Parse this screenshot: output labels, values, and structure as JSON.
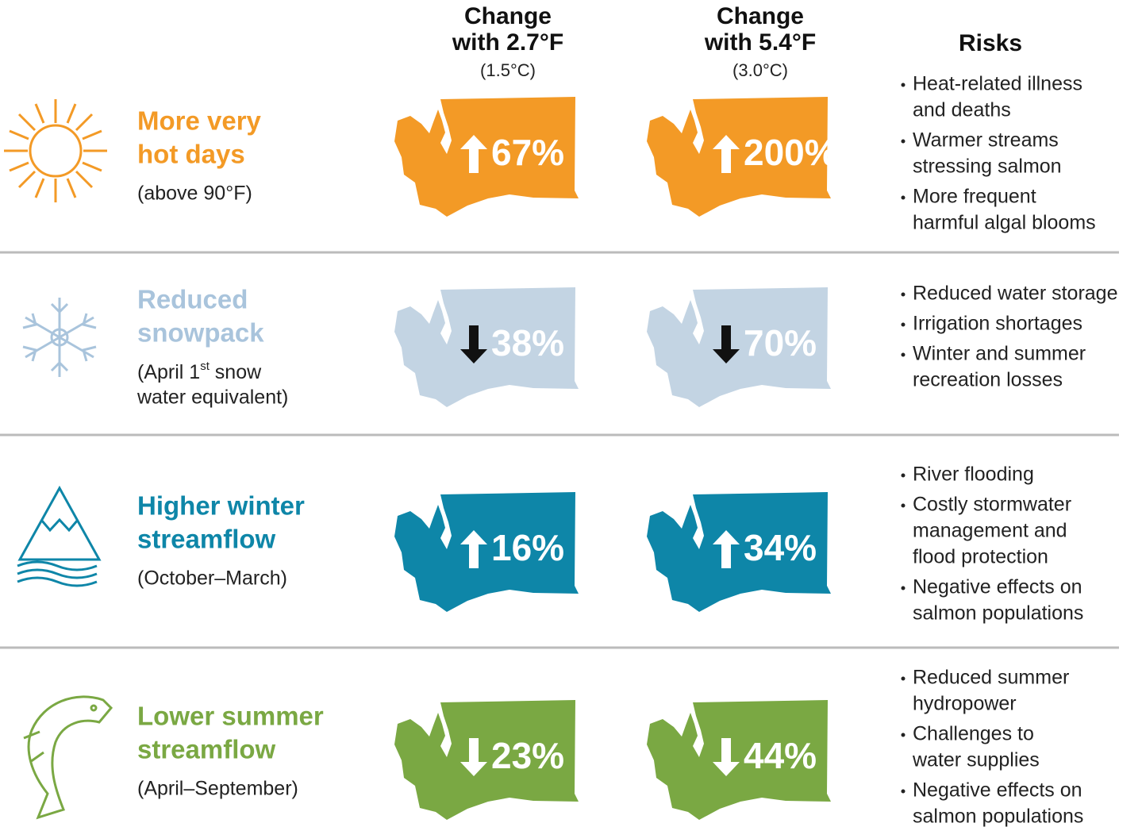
{
  "header": {
    "columns": [
      {
        "title": [
          "Change",
          "with 2.7°F"
        ],
        "subtitle": "(1.5°C)"
      },
      {
        "title": [
          "Change",
          "with 5.4°F"
        ],
        "subtitle": "(3.0°C)"
      }
    ],
    "risks_title": "Risks"
  },
  "rows": [
    {
      "title": [
        "More very",
        "hot days"
      ],
      "subtitle": [
        "(above 90°F)"
      ],
      "changes": [
        "67%",
        "200%"
      ],
      "risks": [
        [
          "Heat-related illness",
          "and deaths"
        ],
        [
          "Warmer streams",
          "stressing salmon"
        ],
        [
          "More frequent",
          "harmful algal blooms"
        ]
      ]
    },
    {
      "title": [
        "Reduced",
        "snowpack"
      ],
      "subtitle": [
        {
          "text": "(April 1",
          "sup": "st",
          "after": " snow"
        },
        "water equivalent)"
      ],
      "changes": [
        "38%",
        "70%"
      ],
      "risks": [
        [
          "Reduced water storage"
        ],
        [
          "Irrigation shortages"
        ],
        [
          "Winter and summer",
          "recreation losses"
        ]
      ]
    },
    {
      "title": [
        "Higher winter",
        "streamflow"
      ],
      "subtitle": [
        "(October–March)"
      ],
      "changes": [
        "16%",
        "34%"
      ],
      "risks": [
        [
          "River flooding"
        ],
        [
          "Costly stormwater",
          "management and",
          "flood protection"
        ],
        [
          "Negative effects on",
          "salmon populations"
        ]
      ]
    },
    {
      "title": [
        "Lower summer",
        "streamflow"
      ],
      "subtitle": [
        "(April–September)"
      ],
      "changes": [
        "23%",
        "44%"
      ],
      "risks": [
        [
          "Reduced summer",
          "hydropower"
        ],
        [
          "Challenges to",
          "water supplies"
        ],
        [
          "Negative effects on",
          "salmon populations"
        ]
      ]
    }
  ]
}
